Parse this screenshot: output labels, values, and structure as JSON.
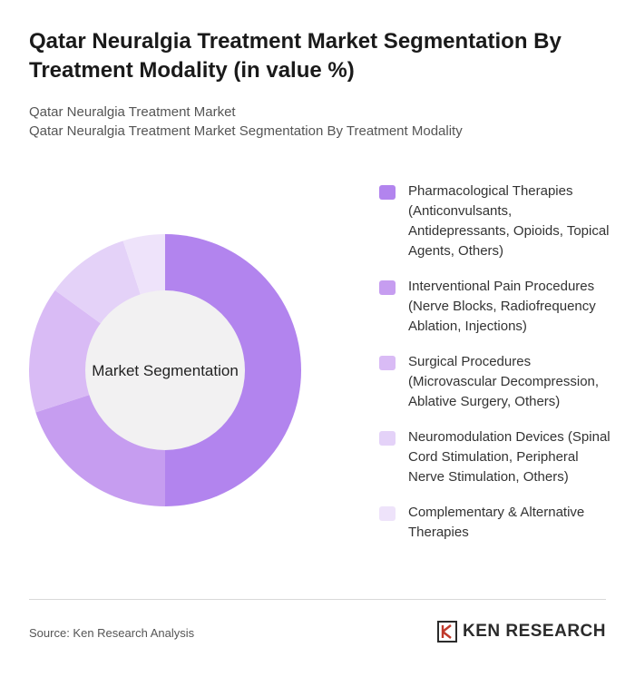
{
  "header": {
    "title": "Qatar Neuralgia Treatment Market Segmentation By Treatment Modality (in value %)",
    "breadcrumb": [
      "Qatar Neuralgia Treatment Market",
      "Qatar Neuralgia Treatment Market Segmentation By Treatment Modality"
    ]
  },
  "chart_data": {
    "type": "pie",
    "variant": "donut",
    "center_label": "Market Segmentation",
    "categories": [
      "Pharmacological Therapies (Anticonvulsants, Antidepressants, Opioids, Topical Agents, Others)",
      "Interventional Pain Procedures (Nerve Blocks, Radiofrequency Ablation, Injections)",
      "Surgical Procedures (Microvascular Decompression, Ablative Surgery, Others)",
      "Neuromodulation Devices (Spinal Cord Stimulation, Peripheral Nerve Stimulation, Others)",
      "Complementary & Alternative Therapies"
    ],
    "values": [
      50,
      20,
      15,
      10,
      5
    ],
    "colors": [
      "#b284ee",
      "#c69df0",
      "#d9bbf5",
      "#e4d2f8",
      "#eee3fa"
    ],
    "legend_position": "right"
  },
  "footer": {
    "source": "Source: Ken Research Analysis",
    "brand": "KEN RESEARCH"
  }
}
